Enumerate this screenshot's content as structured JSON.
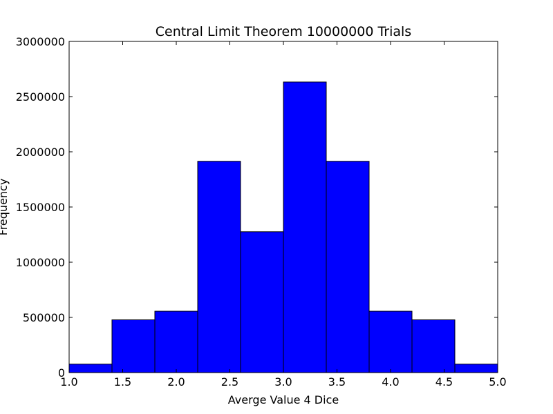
{
  "chart_data": {
    "type": "bar",
    "title": "Central Limit Theorem 10000000 Trials",
    "xlabel": "Averge Value 4 Dice",
    "ylabel": "Frequency",
    "xlim": [
      1.0,
      5.0
    ],
    "ylim": [
      0,
      3000000
    ],
    "bin_edges": [
      1.0,
      1.4,
      1.8,
      2.2,
      2.6,
      3.0,
      3.4,
      3.8,
      4.2,
      4.6,
      5.0
    ],
    "values": [
      77000,
      478000,
      556000,
      1914000,
      1276000,
      2632000,
      1914000,
      556000,
      478000,
      77000
    ],
    "x_ticks": [
      1.0,
      1.5,
      2.0,
      2.5,
      3.0,
      3.5,
      4.0,
      4.5,
      5.0
    ],
    "x_tick_labels": [
      "1.0",
      "1.5",
      "2.0",
      "2.5",
      "3.0",
      "3.5",
      "4.0",
      "4.5",
      "5.0"
    ],
    "y_ticks": [
      0,
      500000,
      1000000,
      1500000,
      2000000,
      2500000,
      3000000
    ],
    "y_tick_labels": [
      "0",
      "500000",
      "1000000",
      "1500000",
      "2000000",
      "2500000",
      "3000000"
    ],
    "bar_color": "#0000ff",
    "edge_color": "#000000",
    "grid": false,
    "legend": "none"
  }
}
